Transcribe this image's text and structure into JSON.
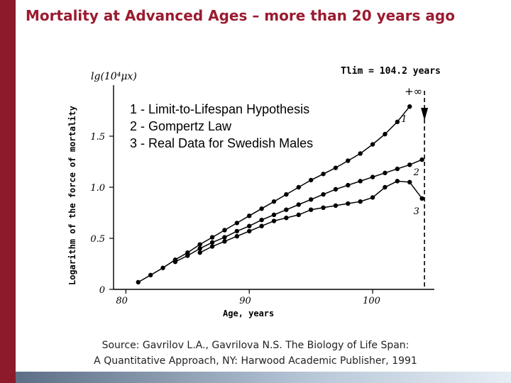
{
  "slide": {
    "title": "Mortality at Advanced Ages – more than 20 years ago",
    "source_label": "Source:",
    "source_line1": "Gavrilov L.A., Gavrilova N.S. The Biology of Life Span:",
    "source_line2": "A Quantitative Approach, NY: Harwood Academic Publisher, 1991"
  },
  "colors": {
    "title": "#9b1b30",
    "sidebar": "#8c1a2a",
    "ink": "#000000"
  },
  "chart_data": {
    "type": "line",
    "title": "",
    "xlabel": "Age, years",
    "ylabel": "Logarithm of the force of mortality",
    "y_axis_title": "lg(10⁴μx)",
    "xlim": [
      79,
      105
    ],
    "ylim": [
      0,
      2.0
    ],
    "x_ticks": [
      80,
      90,
      100
    ],
    "x_tick_labels": [
      "80",
      "90",
      "100"
    ],
    "y_ticks": [
      0,
      0.5,
      1.0,
      1.5
    ],
    "y_tick_labels": [
      "0",
      "0.5",
      "1.0",
      "1.5"
    ],
    "t_lim_label": "Tlim = 104.2 years",
    "t_lim_value": 104.2,
    "infinity_label": "+∞",
    "legend": [
      "1 - Limit-to-Lifespan Hypothesis",
      "2 - Gompertz Law",
      "3 - Real Data for Swedish Males"
    ],
    "series": [
      {
        "name": "1",
        "label": "1",
        "x": [
          81,
          82,
          83,
          84,
          85,
          86,
          87,
          88,
          89,
          90,
          91,
          92,
          93,
          94,
          95,
          96,
          97,
          98,
          99,
          100,
          101,
          102,
          103
        ],
        "y": [
          0.07,
          0.14,
          0.21,
          0.29,
          0.36,
          0.44,
          0.51,
          0.58,
          0.65,
          0.72,
          0.79,
          0.86,
          0.93,
          1.0,
          1.07,
          1.13,
          1.19,
          1.26,
          1.33,
          1.42,
          1.52,
          1.64,
          1.79
        ]
      },
      {
        "name": "2",
        "label": "2",
        "x": [
          84,
          85,
          86,
          87,
          88,
          89,
          90,
          91,
          92,
          93,
          94,
          95,
          96,
          97,
          98,
          99,
          100,
          101,
          102,
          103,
          104
        ],
        "y": [
          0.27,
          0.33,
          0.4,
          0.46,
          0.51,
          0.57,
          0.62,
          0.68,
          0.73,
          0.78,
          0.83,
          0.88,
          0.93,
          0.98,
          1.02,
          1.06,
          1.1,
          1.14,
          1.18,
          1.22,
          1.27
        ]
      },
      {
        "name": "3",
        "label": "3",
        "x": [
          86,
          87,
          88,
          89,
          90,
          91,
          92,
          93,
          94,
          95,
          96,
          97,
          98,
          99,
          100,
          101,
          102,
          103,
          104
        ],
        "y": [
          0.36,
          0.42,
          0.47,
          0.52,
          0.57,
          0.62,
          0.67,
          0.7,
          0.73,
          0.78,
          0.8,
          0.82,
          0.84,
          0.86,
          0.9,
          1.0,
          1.06,
          1.05,
          0.89
        ]
      }
    ]
  }
}
